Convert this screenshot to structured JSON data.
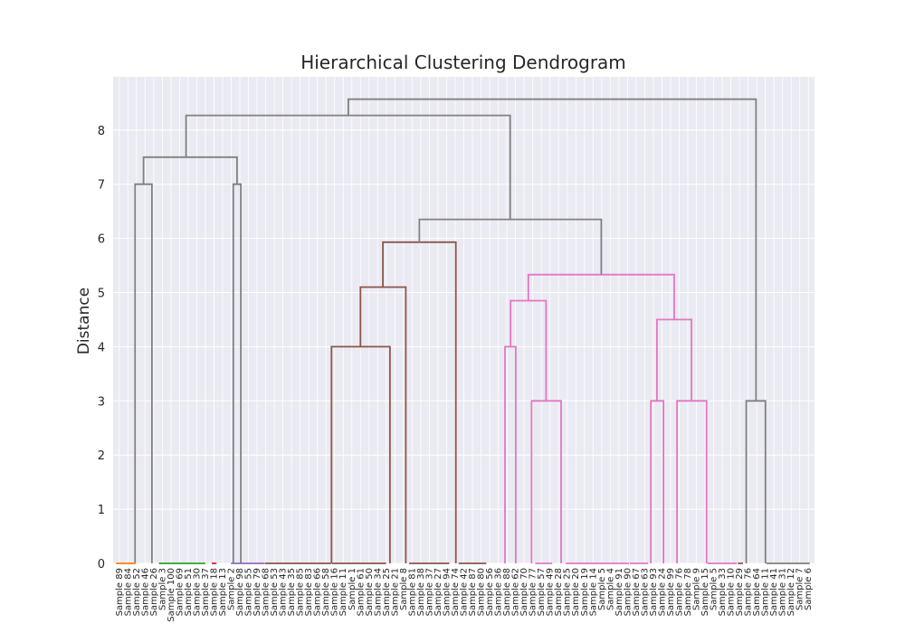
{
  "chart_data": {
    "type": "dendrogram",
    "title": "Hierarchical Clustering Dendrogram",
    "xlabel": "",
    "ylabel": "Distance",
    "ylim": [
      0,
      9
    ],
    "yticks": [
      0,
      1,
      2,
      3,
      4,
      5,
      6,
      7,
      8
    ],
    "grid": true,
    "leaves": [
      "Sample 89",
      "Sample 84",
      "Sample 52",
      "Sample 46",
      "Sample 26",
      "Sample 3",
      "Sample 100",
      "Sample 69",
      "Sample 51",
      "Sample 30",
      "Sample 37",
      "Sample 18",
      "Sample 13",
      "Sample 2",
      "Sample 98",
      "Sample 55",
      "Sample 79",
      "Sample 68",
      "Sample 53",
      "Sample 43",
      "Sample 35",
      "Sample 85",
      "Sample 83",
      "Sample 66",
      "Sample 58",
      "Sample 16",
      "Sample 11",
      "Sample 1",
      "Sample 61",
      "Sample 50",
      "Sample 34",
      "Sample 25",
      "Sample 21",
      "Sample 8",
      "Sample 81",
      "Sample 38",
      "Sample 37",
      "Sample 27",
      "Sample 94",
      "Sample 74",
      "Sample 42",
      "Sample 87",
      "Sample 80",
      "Sample 56",
      "Sample 36",
      "Sample 88",
      "Sample 62",
      "Sample 70",
      "Sample 77",
      "Sample 57",
      "Sample 49",
      "Sample 28",
      "Sample 25",
      "Sample 20",
      "Sample 19",
      "Sample 14",
      "Sample 5",
      "Sample 4",
      "Sample 91",
      "Sample 90",
      "Sample 67",
      "Sample 63",
      "Sample 93",
      "Sample 24",
      "Sample 99",
      "Sample 76",
      "Sample 78",
      "Sample 9",
      "Sample 15",
      "Sample 5",
      "Sample 33",
      "Sample 10",
      "Sample 29",
      "Sample 76",
      "Sample 64",
      "Sample 11",
      "Sample 41",
      "Sample 31",
      "Sample 12",
      "Sample 7",
      "Sample 6"
    ],
    "links": [
      {
        "x": [
          4.7,
          4.7,
          8.3,
          8.3
        ],
        "y": [
          0,
          7.0,
          7.0,
          0
        ],
        "color": "#808080"
      },
      {
        "x": [
          25.7,
          25.7,
          27.3,
          27.3
        ],
        "y": [
          0,
          7.0,
          7.0,
          0
        ],
        "color": "#808080"
      },
      {
        "x": [
          6.5,
          6.5,
          26.5,
          26.5
        ],
        "y": [
          7.0,
          7.5,
          7.5,
          7.0
        ],
        "color": "#808080"
      },
      {
        "x": [
          46.7,
          46.7,
          59.2,
          59.2
        ],
        "y": [
          0,
          4.0,
          4.0,
          0
        ],
        "color": "#8c564b"
      },
      {
        "x": [
          52.9,
          52.9,
          62.6,
          62.6
        ],
        "y": [
          4.0,
          5.1,
          5.1,
          0
        ],
        "color": "#8c564b"
      },
      {
        "x": [
          57.7,
          57.7,
          73.3,
          73.3
        ],
        "y": [
          5.1,
          5.93,
          5.93,
          0
        ],
        "color": "#8c564b"
      },
      {
        "x": [
          83.8,
          83.8,
          86.1,
          86.1
        ],
        "y": [
          0,
          4.0,
          4.0,
          0
        ],
        "color": "#e377c2"
      },
      {
        "x": [
          89.5,
          89.5,
          95.8,
          95.8
        ],
        "y": [
          0,
          3.0,
          3.0,
          0
        ],
        "color": "#e377c2"
      },
      {
        "x": [
          85.0,
          85.0,
          92.6,
          92.6
        ],
        "y": [
          4.0,
          4.85,
          4.85,
          3.0
        ],
        "color": "#e377c2"
      },
      {
        "x": [
          115.0,
          115.0,
          117.7,
          117.7
        ],
        "y": [
          0,
          3.0,
          3.0,
          0
        ],
        "color": "#e377c2"
      },
      {
        "x": [
          120.6,
          120.6,
          126.9,
          126.9
        ],
        "y": [
          0,
          3.0,
          3.0,
          0
        ],
        "color": "#e377c2"
      },
      {
        "x": [
          116.3,
          116.3,
          123.7,
          123.7
        ],
        "y": [
          3.0,
          4.5,
          4.5,
          3.0
        ],
        "color": "#e377c2"
      },
      {
        "x": [
          88.8,
          88.8,
          120.0,
          120.0
        ],
        "y": [
          4.85,
          5.33,
          5.33,
          4.5
        ],
        "color": "#e377c2"
      },
      {
        "x": [
          65.5,
          65.5,
          104.4,
          104.4
        ],
        "y": [
          5.93,
          6.35,
          6.35,
          5.33
        ],
        "color": "#808080"
      },
      {
        "x": [
          15.6,
          15.6,
          84.9,
          84.9
        ],
        "y": [
          7.5,
          8.27,
          8.27,
          6.35
        ],
        "color": "#808080"
      },
      {
        "x": [
          135.4,
          135.4,
          139.5,
          139.5
        ],
        "y": [
          0,
          3.0,
          3.0,
          0
        ],
        "color": "#808080"
      },
      {
        "x": [
          50.3,
          50.3,
          137.5,
          137.5
        ],
        "y": [
          8.27,
          8.57,
          8.57,
          3.0
        ],
        "color": "#808080"
      },
      {
        "x": [
          0.6,
          0.6,
          4.8,
          4.8
        ],
        "y": [
          0,
          0,
          0,
          0
        ],
        "color": "#ff7f0e"
      },
      {
        "x": [
          9.8,
          9.8,
          19.7,
          19.7
        ],
        "y": [
          0,
          0,
          0,
          0
        ],
        "color": "#2ca02c"
      },
      {
        "x": [
          21.1,
          21.1,
          22.1,
          22.1
        ],
        "y": [
          0,
          0,
          0,
          0
        ],
        "color": "#d62728"
      },
      {
        "x": [
          25.2,
          25.2,
          32.3,
          32.3
        ],
        "y": [
          0,
          0,
          0,
          0
        ],
        "color": "#9467bd"
      },
      {
        "x": [
          32.4,
          32.4,
          46.6,
          46.6
        ],
        "y": [
          0,
          0,
          0,
          0
        ],
        "color": "#8c564b"
      },
      {
        "x": [
          46.8,
          46.8,
          58.4,
          58.4
        ],
        "y": [
          0,
          0,
          0,
          0
        ],
        "color": "#8c564b"
      },
      {
        "x": [
          63.3,
          63.3,
          71.9,
          71.9
        ],
        "y": [
          0,
          0,
          0,
          0
        ],
        "color": "#8c564b"
      },
      {
        "x": [
          73.9,
          73.9,
          79.8,
          79.8
        ],
        "y": [
          0,
          0,
          0,
          0
        ],
        "color": "#8c564b"
      },
      {
        "x": [
          90.3,
          90.3,
          93.9,
          93.9
        ],
        "y": [
          0,
          0,
          0,
          0
        ],
        "color": "#e377c2"
      },
      {
        "x": [
          96.8,
          96.8,
          110.3,
          110.3
        ],
        "y": [
          0,
          0,
          0,
          0
        ],
        "color": "#e377c2"
      },
      {
        "x": [
          110.5,
          110.5,
          114.4,
          114.4
        ],
        "y": [
          0,
          0,
          0,
          0
        ],
        "color": "#e377c2"
      },
      {
        "x": [
          127.1,
          127.1,
          133.4,
          133.4
        ],
        "y": [
          0,
          0,
          0,
          0
        ],
        "color": "#e377c2"
      },
      {
        "x": [
          133.6,
          133.6,
          134.7,
          134.7
        ],
        "y": [
          0,
          0,
          0,
          0
        ],
        "color": "#8c564b"
      },
      {
        "x": [
          139.7,
          139.7,
          149.0,
          149.0
        ],
        "y": [
          0,
          0,
          0,
          0
        ],
        "color": "#7f7f7f"
      }
    ]
  }
}
